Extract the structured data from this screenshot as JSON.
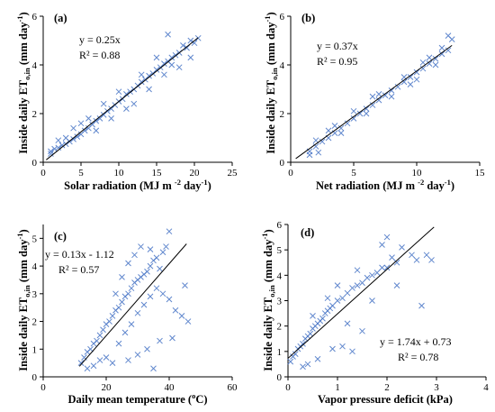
{
  "chart_data": [
    {
      "type": "scatter",
      "panel_label": "(a)",
      "xlabel": "Solar radiation (MJ m-2 day-1)",
      "ylabel": "Inside daily ETo,in (mm day-1)",
      "xlim": [
        0,
        25
      ],
      "ylim": [
        0,
        6
      ],
      "xticks": [
        "0",
        "5",
        "10",
        "15",
        "20",
        "25"
      ],
      "yticks": [
        "0",
        "2",
        "4",
        "6"
      ],
      "equation": "y = 0.25x",
      "r2": "R² = 0.88",
      "trendline": [
        [
          0.4,
          0.1
        ],
        [
          20.5,
          5.12
        ]
      ],
      "points": [
        [
          1,
          0.45
        ],
        [
          1.5,
          0.55
        ],
        [
          2,
          0.6
        ],
        [
          2.5,
          0.7
        ],
        [
          3,
          0.75
        ],
        [
          3.5,
          0.85
        ],
        [
          4,
          0.95
        ],
        [
          4.5,
          1.05
        ],
        [
          5,
          1.15
        ],
        [
          5.5,
          1.3
        ],
        [
          6,
          1.4
        ],
        [
          6.5,
          1.55
        ],
        [
          7,
          1.7
        ],
        [
          7.5,
          1.8
        ],
        [
          8,
          1.95
        ],
        [
          8.5,
          2.1
        ],
        [
          9,
          2.2
        ],
        [
          9.5,
          2.35
        ],
        [
          10,
          2.5
        ],
        [
          10.5,
          2.6
        ],
        [
          11,
          2.8
        ],
        [
          11.5,
          2.9
        ],
        [
          12,
          3.0
        ],
        [
          12.5,
          3.15
        ],
        [
          13,
          3.3
        ],
        [
          13.5,
          3.4
        ],
        [
          14,
          3.55
        ],
        [
          14.5,
          3.65
        ],
        [
          15,
          3.8
        ],
        [
          15.5,
          3.9
        ],
        [
          16,
          4.05
        ],
        [
          16.5,
          4.15
        ],
        [
          17,
          4.3
        ],
        [
          17.5,
          4.4
        ],
        [
          18,
          4.5
        ],
        [
          19,
          4.7
        ],
        [
          20,
          4.9
        ],
        [
          16.5,
          5.25
        ],
        [
          17,
          4.0
        ],
        [
          19.5,
          4.3
        ],
        [
          18,
          3.9
        ],
        [
          14,
          3.0
        ],
        [
          12,
          2.4
        ],
        [
          9,
          1.8
        ],
        [
          7,
          1.3
        ],
        [
          3,
          1.0
        ],
        [
          2,
          0.9
        ],
        [
          5,
          1.6
        ],
        [
          10,
          2.9
        ],
        [
          13,
          3.6
        ],
        [
          15,
          4.3
        ],
        [
          11,
          2.2
        ],
        [
          8,
          2.4
        ],
        [
          6,
          1.8
        ],
        [
          4,
          1.4
        ],
        [
          1,
          0.35
        ],
        [
          18.5,
          4.8
        ],
        [
          19.5,
          5.0
        ],
        [
          20.5,
          5.1
        ],
        [
          16,
          3.6
        ]
      ]
    },
    {
      "type": "scatter",
      "panel_label": "(b)",
      "xlabel": "Net radiation (MJ m-2 day-1)",
      "ylabel": "Inside daily ETo,in (mm day-1)",
      "xlim": [
        0,
        15
      ],
      "ylim": [
        0,
        6
      ],
      "xticks": [
        "0",
        "5",
        "10",
        "15"
      ],
      "yticks": [
        "0",
        "2",
        "4",
        "6"
      ],
      "equation": "y = 0.37x",
      "r2": "R² = 0.95",
      "trendline": [
        [
          0.4,
          0.15
        ],
        [
          12.8,
          4.8
        ]
      ],
      "points": [
        [
          1.5,
          0.45
        ],
        [
          2,
          0.65
        ],
        [
          2.5,
          0.85
        ],
        [
          3,
          1.0
        ],
        [
          3.5,
          1.2
        ],
        [
          4,
          1.4
        ],
        [
          4.5,
          1.6
        ],
        [
          5,
          1.8
        ],
        [
          5.5,
          2.0
        ],
        [
          6,
          2.2
        ],
        [
          6.5,
          2.35
        ],
        [
          7,
          2.55
        ],
        [
          7.5,
          2.75
        ],
        [
          8,
          2.95
        ],
        [
          8.5,
          3.1
        ],
        [
          9,
          3.3
        ],
        [
          9.5,
          3.5
        ],
        [
          10,
          3.7
        ],
        [
          10.5,
          3.85
        ],
        [
          11,
          4.05
        ],
        [
          11.5,
          4.25
        ],
        [
          12,
          4.45
        ],
        [
          12.5,
          4.6
        ],
        [
          12.8,
          5.05
        ],
        [
          12.5,
          5.2
        ],
        [
          2,
          0.9
        ],
        [
          3,
          1.3
        ],
        [
          4,
          1.2
        ],
        [
          5,
          2.1
        ],
        [
          6,
          2.0
        ],
        [
          7,
          2.8
        ],
        [
          8,
          2.7
        ],
        [
          9,
          3.5
        ],
        [
          10,
          3.4
        ],
        [
          11,
          4.3
        ],
        [
          11.5,
          4.0
        ],
        [
          1.5,
          0.3
        ],
        [
          2.2,
          0.4
        ],
        [
          3.5,
          1.5
        ],
        [
          6.5,
          2.7
        ],
        [
          9.5,
          3.2
        ],
        [
          10.5,
          4.1
        ],
        [
          12,
          4.7
        ]
      ]
    },
    {
      "type": "scatter",
      "panel_label": "(c)",
      "xlabel": "Daily mean temperature (oC)",
      "ylabel": "Inside daily ETo,in (mm day-1)",
      "xlim": [
        0,
        60
      ],
      "ylim": [
        0,
        5.5
      ],
      "xticks": [
        "0",
        "20",
        "40",
        "60"
      ],
      "yticks": [
        "0",
        "1",
        "2",
        "3",
        "4",
        "5"
      ],
      "equation": "y = 0.13x - 1.12",
      "r2": "R² = 0.57",
      "trendline": [
        [
          11.5,
          0.38
        ],
        [
          45.5,
          4.8
        ]
      ],
      "points": [
        [
          12,
          0.5
        ],
        [
          13,
          0.7
        ],
        [
          14,
          0.9
        ],
        [
          15,
          1.0
        ],
        [
          16,
          1.2
        ],
        [
          17,
          1.3
        ],
        [
          18,
          1.5
        ],
        [
          19,
          1.7
        ],
        [
          20,
          1.9
        ],
        [
          21,
          2.0
        ],
        [
          22,
          2.2
        ],
        [
          23,
          2.4
        ],
        [
          24,
          2.5
        ],
        [
          25,
          2.7
        ],
        [
          26,
          2.9
        ],
        [
          27,
          3.0
        ],
        [
          28,
          3.2
        ],
        [
          29,
          3.4
        ],
        [
          30,
          3.5
        ],
        [
          31,
          3.6
        ],
        [
          32,
          3.7
        ],
        [
          33,
          3.8
        ],
        [
          34,
          4.0
        ],
        [
          35,
          4.2
        ],
        [
          36,
          4.3
        ],
        [
          38,
          4.5
        ],
        [
          39,
          4.7
        ],
        [
          40,
          5.25
        ],
        [
          24,
          1.2
        ],
        [
          26,
          1.6
        ],
        [
          28,
          1.9
        ],
        [
          30,
          2.3
        ],
        [
          32,
          2.6
        ],
        [
          34,
          2.9
        ],
        [
          36,
          3.2
        ],
        [
          38,
          3.0
        ],
        [
          40,
          2.8
        ],
        [
          42,
          2.4
        ],
        [
          44,
          2.2
        ],
        [
          46,
          2.0
        ],
        [
          45,
          3.3
        ],
        [
          41,
          1.4
        ],
        [
          37,
          1.3
        ],
        [
          35,
          0.3
        ],
        [
          33,
          1.0
        ],
        [
          30,
          0.8
        ],
        [
          27,
          0.6
        ],
        [
          22,
          0.5
        ],
        [
          20,
          0.7
        ],
        [
          18,
          0.6
        ],
        [
          16,
          0.4
        ],
        [
          14,
          0.3
        ],
        [
          23,
          3.0
        ],
        [
          25,
          3.6
        ],
        [
          27,
          4.1
        ],
        [
          29,
          4.4
        ],
        [
          31,
          4.7
        ],
        [
          34,
          4.6
        ],
        [
          37,
          3.9
        ]
      ]
    },
    {
      "type": "scatter",
      "panel_label": "(d)",
      "xlabel": "Vapor pressure deficit (kPa)",
      "ylabel": "Inside daily ETo,in (mm day-1)",
      "xlim": [
        0,
        4
      ],
      "ylim": [
        0,
        6
      ],
      "xticks": [
        "0",
        "1",
        "2",
        "3",
        "4"
      ],
      "yticks": [
        "0",
        "1",
        "2",
        "3",
        "4",
        "5",
        "6"
      ],
      "equation": "y = 1.74x + 0.73",
      "r2": "R² = 0.78",
      "trendline": [
        [
          0.0,
          0.73
        ],
        [
          2.95,
          5.9
        ]
      ],
      "points": [
        [
          0.05,
          0.6
        ],
        [
          0.1,
          0.8
        ],
        [
          0.15,
          0.9
        ],
        [
          0.2,
          1.1
        ],
        [
          0.25,
          1.2
        ],
        [
          0.3,
          1.3
        ],
        [
          0.35,
          1.5
        ],
        [
          0.4,
          1.6
        ],
        [
          0.45,
          1.7
        ],
        [
          0.5,
          1.9
        ],
        [
          0.55,
          2.0
        ],
        [
          0.6,
          2.1
        ],
        [
          0.65,
          2.2
        ],
        [
          0.7,
          2.3
        ],
        [
          0.75,
          2.5
        ],
        [
          0.8,
          2.6
        ],
        [
          0.85,
          2.7
        ],
        [
          0.9,
          2.8
        ],
        [
          1.0,
          3.0
        ],
        [
          1.1,
          3.1
        ],
        [
          1.2,
          3.3
        ],
        [
          1.3,
          3.5
        ],
        [
          1.4,
          3.6
        ],
        [
          1.5,
          3.7
        ],
        [
          1.6,
          3.9
        ],
        [
          1.7,
          4.0
        ],
        [
          1.8,
          4.1
        ],
        [
          1.9,
          4.3
        ],
        [
          2.0,
          4.3
        ],
        [
          2.1,
          4.7
        ],
        [
          2.2,
          4.5
        ],
        [
          2.3,
          5.1
        ],
        [
          2.5,
          4.8
        ],
        [
          2.6,
          4.6
        ],
        [
          2.8,
          4.8
        ],
        [
          2.9,
          4.6
        ],
        [
          2.7,
          2.8
        ],
        [
          1.9,
          5.2
        ],
        [
          2.0,
          5.5
        ],
        [
          1.1,
          1.2
        ],
        [
          1.5,
          1.8
        ],
        [
          1.3,
          1.0
        ],
        [
          0.9,
          1.1
        ],
        [
          0.6,
          0.7
        ],
        [
          0.4,
          0.5
        ],
        [
          0.3,
          0.4
        ],
        [
          1.2,
          2.1
        ],
        [
          1.7,
          3.0
        ],
        [
          2.2,
          3.6
        ],
        [
          0.8,
          3.1
        ],
        [
          0.5,
          2.4
        ],
        [
          1.0,
          3.6
        ],
        [
          1.4,
          4.2
        ]
      ]
    }
  ]
}
